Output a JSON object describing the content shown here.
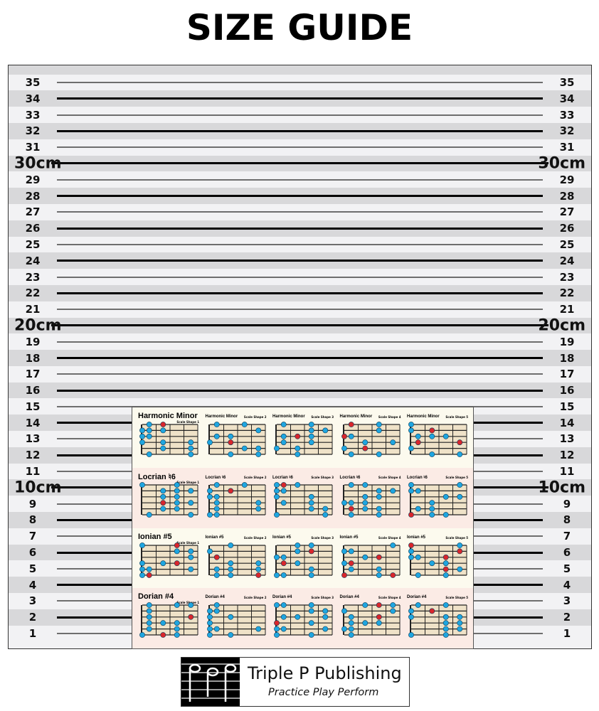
{
  "title": "SIZE GUIDE",
  "ruler": {
    "min": 1,
    "max": 35,
    "major_labels": {
      "10": "10cm",
      "20": "20cm",
      "30": "30cm"
    },
    "line_color_even": "#000000",
    "line_color_odd": "#6e6e6e"
  },
  "poster": {
    "sections": [
      {
        "name": "Harmonic Minor",
        "bg": "#fcfaee"
      },
      {
        "name": "Locrian ♮6",
        "bg": "#fbebe5"
      },
      {
        "name": "Ionian #5",
        "bg": "#fcfaee"
      },
      {
        "name": "Dorian #4",
        "bg": "#fbebe5"
      }
    ],
    "shape_labels": [
      "Scale Shape 1",
      "Scale Shape 2",
      "Scale Shape 3",
      "Scale Shape 4",
      "Scale Shape 5"
    ],
    "dot_color": "#1fa6e0",
    "root_color": "#d9262c",
    "root_label": "R"
  },
  "logo": {
    "name": "Triple P Publishing",
    "tagline": "Practice Play Perform"
  }
}
